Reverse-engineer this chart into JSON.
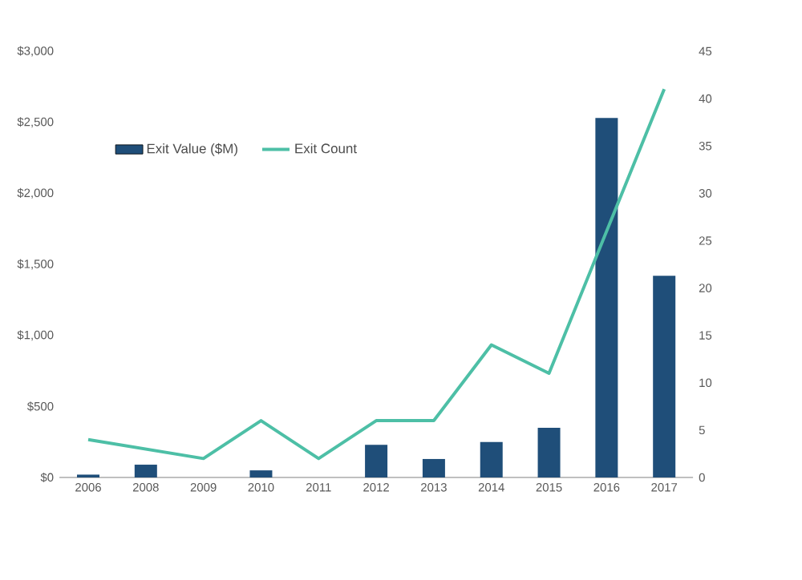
{
  "chart_data": {
    "type": "bar",
    "categories": [
      "2006",
      "2008",
      "2009",
      "2010",
      "2011",
      "2012",
      "2013",
      "2014",
      "2015",
      "2016",
      "2017"
    ],
    "series": [
      {
        "name": "Exit Value ($M)",
        "color": "#1f4e79",
        "values": [
          20,
          90,
          0,
          50,
          0,
          230,
          130,
          250,
          350,
          2530,
          1420
        ]
      },
      {
        "name": "Exit Count",
        "type": "line",
        "axis": "y2",
        "color": "#4dbfa6",
        "values": [
          4,
          3,
          2,
          6,
          2,
          6,
          6,
          14,
          11,
          26,
          41
        ]
      }
    ],
    "ylim": [
      0,
      3000
    ],
    "yticks": [
      {
        "value": 0,
        "label": "$0"
      },
      {
        "value": 500,
        "label": "$500"
      },
      {
        "value": 1000,
        "label": "$1,000"
      },
      {
        "value": 1500,
        "label": "$1,500"
      },
      {
        "value": 2000,
        "label": "$2,000"
      },
      {
        "value": 2500,
        "label": "$2,500"
      },
      {
        "value": 3000,
        "label": "$3,000"
      }
    ],
    "y2lim": [
      0,
      45
    ],
    "y2ticks": [
      0,
      5,
      10,
      15,
      20,
      25,
      30,
      35,
      40,
      45
    ],
    "legend": "top left",
    "grid": false,
    "marker": "none"
  }
}
